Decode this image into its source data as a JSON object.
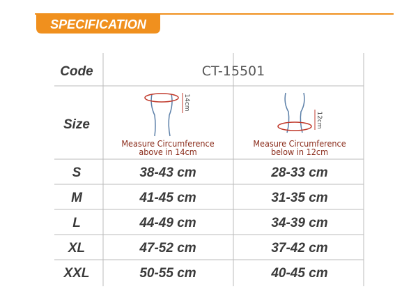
{
  "header": {
    "title": "SPECIFICATION"
  },
  "code": {
    "label": "Code",
    "value": "CT-15501"
  },
  "size": {
    "label": "Size",
    "diagrams": [
      {
        "measure": "14cm",
        "caption": [
          "Measure Circumference",
          "above in 14cm"
        ]
      },
      {
        "measure": "12cm",
        "caption": [
          "Measure Circumference",
          "below in 12cm"
        ]
      }
    ]
  },
  "rows": [
    [
      "S",
      "38-43 cm",
      "28-33 cm"
    ],
    [
      "M",
      "41-45 cm",
      "31-35 cm"
    ],
    [
      "L",
      "44-49 cm",
      "34-39 cm"
    ],
    [
      "XL",
      "47-52 cm",
      "37-42 cm"
    ],
    [
      "XXL",
      "50-55 cm",
      "40-45 cm"
    ]
  ]
}
